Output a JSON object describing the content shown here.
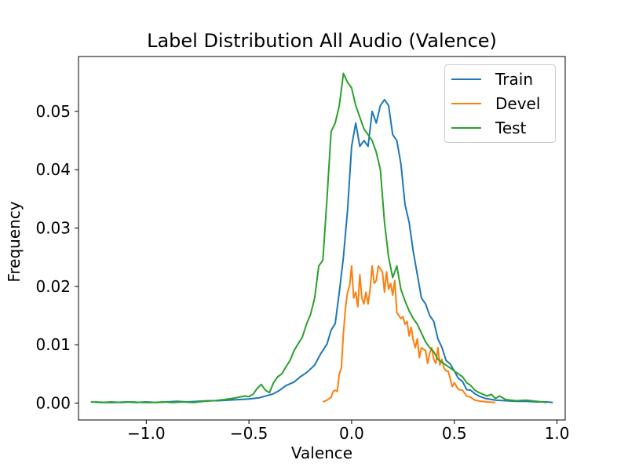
{
  "chart_data": {
    "type": "line",
    "title": "Label Distribution All Audio (Valence)",
    "xlabel": "Valence",
    "ylabel": "Frequency",
    "xlim": [
      -1.33,
      1.04
    ],
    "ylim": [
      -0.0029,
      0.0594
    ],
    "xticks": [
      -1.0,
      -0.5,
      0.0,
      0.5,
      1.0
    ],
    "xtick_labels": [
      "−1.0",
      "−0.5",
      "0.0",
      "0.5",
      "1.0"
    ],
    "yticks": [
      0.0,
      0.01,
      0.02,
      0.03,
      0.04,
      0.05
    ],
    "ytick_labels": [
      "0.00",
      "0.01",
      "0.02",
      "0.03",
      "0.04",
      "0.05"
    ],
    "legend_position": "top-right",
    "series": [
      {
        "name": "Train",
        "color": "#1f77b4",
        "x": [
          -1.25,
          -1.2,
          -1.15,
          -1.1,
          -1.05,
          -1.0,
          -0.95,
          -0.9,
          -0.85,
          -0.8,
          -0.75,
          -0.7,
          -0.65,
          -0.6,
          -0.55,
          -0.5,
          -0.45,
          -0.42,
          -0.38,
          -0.35,
          -0.32,
          -0.28,
          -0.25,
          -0.22,
          -0.18,
          -0.15,
          -0.12,
          -0.1,
          -0.08,
          -0.06,
          -0.04,
          -0.02,
          0.0,
          0.02,
          0.04,
          0.06,
          0.08,
          0.1,
          0.12,
          0.14,
          0.16,
          0.18,
          0.2,
          0.22,
          0.24,
          0.26,
          0.28,
          0.3,
          0.32,
          0.34,
          0.36,
          0.38,
          0.4,
          0.42,
          0.44,
          0.46,
          0.48,
          0.5,
          0.52,
          0.54,
          0.56,
          0.58,
          0.6,
          0.62,
          0.65,
          0.7,
          0.75,
          0.8,
          0.85,
          0.9,
          0.95,
          0.98
        ],
        "y": [
          0.0002,
          0.0001,
          0.0001,
          0.0002,
          0.0001,
          0.0002,
          0.0001,
          0.0002,
          0.0003,
          0.0002,
          0.0003,
          0.0004,
          0.0004,
          0.0005,
          0.0006,
          0.0007,
          0.0009,
          0.0012,
          0.0016,
          0.0022,
          0.003,
          0.0036,
          0.0045,
          0.0052,
          0.0065,
          0.0085,
          0.0101,
          0.0125,
          0.0136,
          0.019,
          0.025,
          0.033,
          0.044,
          0.048,
          0.044,
          0.045,
          0.044,
          0.05,
          0.048,
          0.051,
          0.052,
          0.051,
          0.046,
          0.045,
          0.041,
          0.034,
          0.031,
          0.026,
          0.022,
          0.018,
          0.017,
          0.015,
          0.014,
          0.011,
          0.0095,
          0.0073,
          0.0067,
          0.0055,
          0.0042,
          0.0037,
          0.0023,
          0.0022,
          0.0016,
          0.0012,
          0.0008,
          0.0005,
          0.0004,
          0.0003,
          0.0003,
          0.0002,
          0.0002,
          0.0001
        ]
      },
      {
        "name": "Devel",
        "color": "#ff7f0e",
        "x": [
          -0.14,
          -0.12,
          -0.1,
          -0.09,
          -0.08,
          -0.07,
          -0.06,
          -0.05,
          -0.04,
          -0.03,
          -0.02,
          -0.01,
          0.0,
          0.01,
          0.02,
          0.03,
          0.04,
          0.05,
          0.06,
          0.07,
          0.08,
          0.09,
          0.1,
          0.11,
          0.12,
          0.13,
          0.14,
          0.15,
          0.16,
          0.17,
          0.18,
          0.19,
          0.2,
          0.21,
          0.22,
          0.23,
          0.24,
          0.25,
          0.26,
          0.27,
          0.28,
          0.29,
          0.3,
          0.31,
          0.32,
          0.33,
          0.34,
          0.35,
          0.36,
          0.37,
          0.38,
          0.39,
          0.4,
          0.41,
          0.42,
          0.43,
          0.44,
          0.45,
          0.46,
          0.47,
          0.48,
          0.49,
          0.5,
          0.52,
          0.54,
          0.56,
          0.58,
          0.6,
          0.63,
          0.66,
          0.7
        ],
        "y": [
          0.0002,
          0.0005,
          0.001,
          0.002,
          0.0022,
          0.002,
          0.005,
          0.006,
          0.012,
          0.0162,
          0.019,
          0.02,
          0.0235,
          0.018,
          0.019,
          0.0165,
          0.022,
          0.018,
          0.017,
          0.019,
          0.017,
          0.0195,
          0.0235,
          0.0205,
          0.021,
          0.0235,
          0.023,
          0.0225,
          0.019,
          0.0225,
          0.0195,
          0.0205,
          0.0185,
          0.021,
          0.0155,
          0.015,
          0.0145,
          0.0148,
          0.0135,
          0.014,
          0.0115,
          0.013,
          0.0108,
          0.0095,
          0.011,
          0.0078,
          0.0095,
          0.0092,
          0.009,
          0.0068,
          0.0085,
          0.0095,
          0.0075,
          0.0068,
          0.0095,
          0.0065,
          0.0075,
          0.006,
          0.0055,
          0.0055,
          0.0042,
          0.0028,
          0.0035,
          0.0023,
          0.0022,
          0.0012,
          0.001,
          0.0005,
          0.0003,
          0.0002,
          0.0001
        ]
      },
      {
        "name": "Test",
        "color": "#2ca02c",
        "x": [
          -1.27,
          -1.22,
          -1.17,
          -1.12,
          -1.07,
          -1.02,
          -0.97,
          -0.92,
          -0.87,
          -0.82,
          -0.77,
          -0.72,
          -0.67,
          -0.62,
          -0.58,
          -0.55,
          -0.52,
          -0.5,
          -0.48,
          -0.46,
          -0.44,
          -0.42,
          -0.4,
          -0.38,
          -0.36,
          -0.34,
          -0.32,
          -0.3,
          -0.28,
          -0.26,
          -0.24,
          -0.22,
          -0.2,
          -0.18,
          -0.16,
          -0.14,
          -0.12,
          -0.1,
          -0.08,
          -0.06,
          -0.04,
          -0.02,
          0.0,
          0.02,
          0.04,
          0.06,
          0.08,
          0.1,
          0.12,
          0.14,
          0.16,
          0.18,
          0.2,
          0.22,
          0.24,
          0.26,
          0.28,
          0.3,
          0.32,
          0.34,
          0.36,
          0.38,
          0.4,
          0.42,
          0.44,
          0.46,
          0.48,
          0.5,
          0.52,
          0.54,
          0.56,
          0.58,
          0.6,
          0.62,
          0.64,
          0.66,
          0.68,
          0.7,
          0.72,
          0.75,
          0.8,
          0.85,
          0.9,
          0.93,
          0.95
        ],
        "y": [
          0.0002,
          0.0001,
          0.0002,
          0.0001,
          0.0002,
          0.0001,
          0.0001,
          0.0002,
          0.0001,
          0.0002,
          0.0001,
          0.0003,
          0.0004,
          0.0006,
          0.0008,
          0.001,
          0.0012,
          0.0011,
          0.0015,
          0.0025,
          0.0032,
          0.0022,
          0.0018,
          0.0035,
          0.0045,
          0.005,
          0.0062,
          0.0073,
          0.009,
          0.0102,
          0.0113,
          0.0135,
          0.0152,
          0.018,
          0.0235,
          0.0245,
          0.035,
          0.0465,
          0.048,
          0.051,
          0.0565,
          0.055,
          0.054,
          0.051,
          0.049,
          0.047,
          0.046,
          0.045,
          0.043,
          0.04,
          0.031,
          0.025,
          0.0215,
          0.0235,
          0.0195,
          0.0175,
          0.0158,
          0.0145,
          0.0135,
          0.012,
          0.0105,
          0.0095,
          0.0088,
          0.0075,
          0.007,
          0.0065,
          0.006,
          0.0055,
          0.005,
          0.0045,
          0.0035,
          0.003,
          0.0022,
          0.0018,
          0.0015,
          0.0012,
          0.0015,
          0.0008,
          0.0012,
          0.0006,
          0.0004,
          0.0005,
          0.0003,
          0.0002,
          0.0001
        ]
      }
    ]
  }
}
